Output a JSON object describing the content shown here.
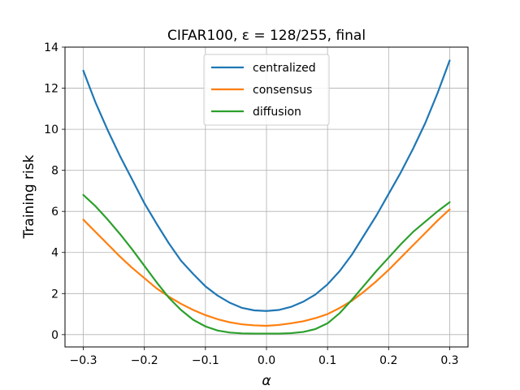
{
  "chart_data": {
    "type": "line",
    "title": "CIFAR100, ε = 128/255, final",
    "xlabel": "α",
    "ylabel": "Training risk",
    "xlim": [
      -0.33,
      0.33
    ],
    "ylim": [
      -0.6,
      14
    ],
    "xticks": [
      -0.3,
      -0.2,
      -0.1,
      0.0,
      0.1,
      0.2,
      0.3
    ],
    "xtick_labels": [
      "−0.3",
      "−0.2",
      "−0.1",
      "0.0",
      "0.1",
      "0.2",
      "0.3"
    ],
    "yticks": [
      0,
      2,
      4,
      6,
      8,
      10,
      12,
      14
    ],
    "ytick_labels": [
      "0",
      "2",
      "4",
      "6",
      "8",
      "10",
      "12",
      "14"
    ],
    "grid": true,
    "legend_position": "top-center",
    "x": [
      -0.3,
      -0.28,
      -0.26,
      -0.24,
      -0.22,
      -0.2,
      -0.18,
      -0.16,
      -0.14,
      -0.12,
      -0.1,
      -0.08,
      -0.06,
      -0.04,
      -0.02,
      0.0,
      0.02,
      0.04,
      0.06,
      0.08,
      0.1,
      0.12,
      0.14,
      0.16,
      0.18,
      0.2,
      0.22,
      0.24,
      0.26,
      0.28,
      0.3
    ],
    "series": [
      {
        "name": "centralized",
        "color": "#1f77b4",
        "values": [
          12.85,
          11.3,
          9.95,
          8.7,
          7.55,
          6.4,
          5.4,
          4.45,
          3.6,
          2.95,
          2.35,
          1.9,
          1.55,
          1.3,
          1.18,
          1.15,
          1.2,
          1.35,
          1.6,
          1.95,
          2.45,
          3.1,
          3.9,
          4.85,
          5.8,
          6.85,
          7.9,
          9.05,
          10.3,
          11.75,
          13.35
        ]
      },
      {
        "name": "consensus",
        "color": "#ff7f0e",
        "values": [
          5.6,
          5.0,
          4.4,
          3.8,
          3.25,
          2.75,
          2.25,
          1.85,
          1.5,
          1.2,
          0.95,
          0.75,
          0.6,
          0.5,
          0.45,
          0.43,
          0.47,
          0.55,
          0.65,
          0.8,
          1.0,
          1.3,
          1.65,
          2.1,
          2.6,
          3.15,
          3.75,
          4.35,
          4.95,
          5.55,
          6.1
        ]
      },
      {
        "name": "diffusion",
        "color": "#2ca02c",
        "values": [
          6.8,
          6.25,
          5.6,
          4.9,
          4.15,
          3.35,
          2.55,
          1.8,
          1.2,
          0.72,
          0.4,
          0.2,
          0.1,
          0.06,
          0.05,
          0.05,
          0.05,
          0.07,
          0.13,
          0.27,
          0.55,
          1.05,
          1.7,
          2.4,
          3.1,
          3.75,
          4.4,
          5.0,
          5.5,
          6.0,
          6.45
        ]
      }
    ]
  }
}
